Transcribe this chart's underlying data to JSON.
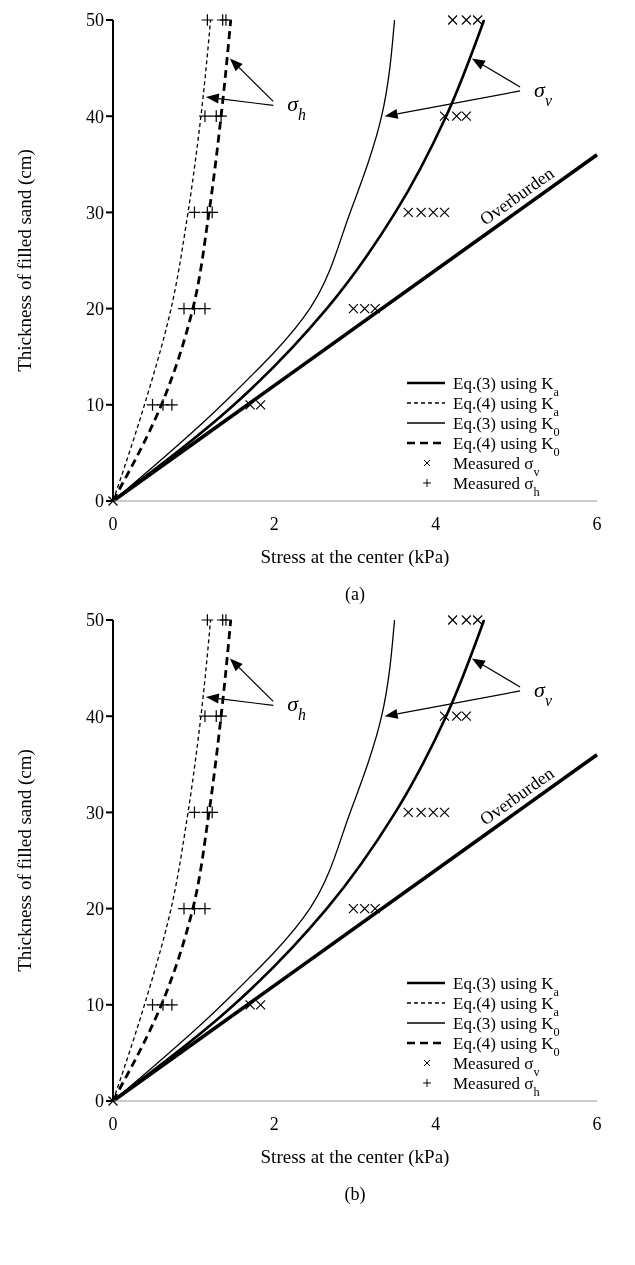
{
  "chart_data": [
    {
      "type": "line",
      "xlabel": "Stress at the center (kPa)",
      "ylabel": "Thickness of filled sand (cm)",
      "xlim": [
        0,
        6
      ],
      "xticks": [
        0,
        2,
        4,
        6
      ],
      "ylim": [
        0,
        50
      ],
      "yticks": [
        0,
        10,
        20,
        30,
        40,
        50
      ],
      "legend": "bottom right",
      "series": [
        {
          "name": "Eq.(3) using K$_{a}$",
          "type": "line",
          "line_style": "solid",
          "color": "#000000",
          "x": [
            0,
            1.5,
            2.65,
            3.5,
            4.13,
            4.6
          ],
          "values": [
            0,
            10,
            20,
            30,
            40,
            50
          ]
        },
        {
          "name": "Eq.(4) using K$_{a}$",
          "type": "line",
          "line_style": "dashed",
          "color": "#000000",
          "x": [
            0,
            0.39,
            0.72,
            0.93,
            1.09,
            1.21
          ],
          "values": [
            0,
            10,
            20,
            30,
            40,
            50
          ]
        },
        {
          "name": "Eq.(3) using K$_{0}$",
          "type": "line",
          "line_style": "solid",
          "color": "#000000",
          "x": [
            0,
            1.35,
            2.44,
            2.94,
            3.33,
            3.49
          ],
          "values": [
            0,
            10,
            20,
            30,
            40,
            50
          ]
        },
        {
          "name": "Eq.(4) using K$_{0}$",
          "type": "line",
          "line_style": "dashed",
          "color": "#000000",
          "x": [
            0,
            0.6,
            0.99,
            1.19,
            1.34,
            1.46
          ],
          "values": [
            0,
            10,
            20,
            30,
            40,
            50
          ]
        },
        {
          "type": "line",
          "line_style": "solid",
          "color": "#000000",
          "x": [
            0,
            6
          ],
          "values": [
            0,
            36
          ]
        },
        {
          "name": "Measured σ$_{v}$",
          "type": "scatter",
          "marker": "cross",
          "color": "#000000",
          "x": [
            0,
            1.7,
            1.83,
            2.98,
            3.12,
            3.25,
            3.66,
            3.82,
            3.97,
            4.11,
            4.11,
            4.26,
            4.38,
            4.21,
            4.38,
            4.52
          ],
          "values": [
            0,
            10,
            10,
            20,
            20,
            20,
            30,
            30,
            30,
            30,
            40,
            40,
            40,
            50,
            50,
            50
          ]
        },
        {
          "name": "Measured σ$_{h}$",
          "type": "scatter",
          "marker": "plus",
          "color": "#000000",
          "x": [
            0.49,
            0.62,
            0.73,
            0.88,
            1.01,
            1.14,
            1.01,
            1.17,
            1.23,
            1.14,
            1.28,
            1.34,
            1.17,
            1.36,
            1.4
          ],
          "values": [
            10,
            10,
            10,
            20,
            20,
            20,
            30,
            30,
            30,
            40,
            40,
            40,
            50,
            50,
            50
          ]
        }
      ],
      "annotations": [
        "σ$_{h}$",
        "σ$_{v}$",
        {
          "text": "Overburden",
          "x": 5.1,
          "y": 30.6
        },
        "(a)"
      ]
    },
    {
      "type": "line",
      "xlabel": "Stress at the center (kPa)",
      "ylabel": "Thickness of filled sand (cm)",
      "xlim": [
        0,
        6
      ],
      "xticks": [
        0,
        2,
        4,
        6
      ],
      "ylim": [
        0,
        50
      ],
      "yticks": [
        0,
        10,
        20,
        30,
        40,
        50
      ],
      "legend": "bottom right",
      "series": [
        {
          "name": "Eq.(3) using K$_{a}$",
          "type": "line",
          "line_style": "solid",
          "color": "#000000",
          "x": [
            0,
            1.5,
            2.65,
            3.5,
            4.13,
            4.6
          ],
          "values": [
            0,
            10,
            20,
            30,
            40,
            50
          ]
        },
        {
          "name": "Eq.(4) using K$_{a}$",
          "type": "line",
          "line_style": "dashed",
          "color": "#000000",
          "x": [
            0,
            0.39,
            0.72,
            0.93,
            1.09,
            1.21
          ],
          "values": [
            0,
            10,
            20,
            30,
            40,
            50
          ]
        },
        {
          "name": "Eq.(3) using K$_{0}$",
          "type": "line",
          "line_style": "solid",
          "color": "#000000",
          "x": [
            0,
            1.35,
            2.44,
            2.94,
            3.33,
            3.49
          ],
          "values": [
            0,
            10,
            20,
            30,
            40,
            50
          ]
        },
        {
          "name": "Eq.(4) using K$_{0}$",
          "type": "line",
          "line_style": "dashed",
          "color": "#000000",
          "x": [
            0,
            0.6,
            0.99,
            1.19,
            1.34,
            1.46
          ],
          "values": [
            0,
            10,
            20,
            30,
            40,
            50
          ]
        },
        {
          "type": "line",
          "line_style": "solid",
          "color": "#000000",
          "x": [
            0,
            6
          ],
          "values": [
            0,
            36
          ]
        },
        {
          "name": "Measured σ$_{v}$",
          "type": "scatter",
          "marker": "cross",
          "color": "#000000",
          "x": [
            0,
            1.7,
            1.83,
            2.98,
            3.12,
            3.25,
            3.66,
            3.82,
            3.97,
            4.11,
            4.11,
            4.26,
            4.38,
            4.21,
            4.38,
            4.52
          ],
          "values": [
            0,
            10,
            10,
            20,
            20,
            20,
            30,
            30,
            30,
            30,
            40,
            40,
            40,
            50,
            50,
            50
          ]
        },
        {
          "name": "Measured σ$_{h}$",
          "type": "scatter",
          "marker": "plus",
          "color": "#000000",
          "x": [
            0.49,
            0.62,
            0.73,
            0.88,
            1.01,
            1.14,
            1.01,
            1.17,
            1.23,
            1.14,
            1.28,
            1.34,
            1.17,
            1.36,
            1.4
          ],
          "values": [
            10,
            10,
            10,
            20,
            20,
            20,
            30,
            30,
            30,
            40,
            40,
            40,
            50,
            50,
            50
          ]
        }
      ],
      "annotations": [
        "σ$_{h}$",
        "σ$_{v}$",
        {
          "text": "Overburden",
          "x": 5.1,
          "y": 30.6
        },
        "(b)"
      ]
    }
  ]
}
